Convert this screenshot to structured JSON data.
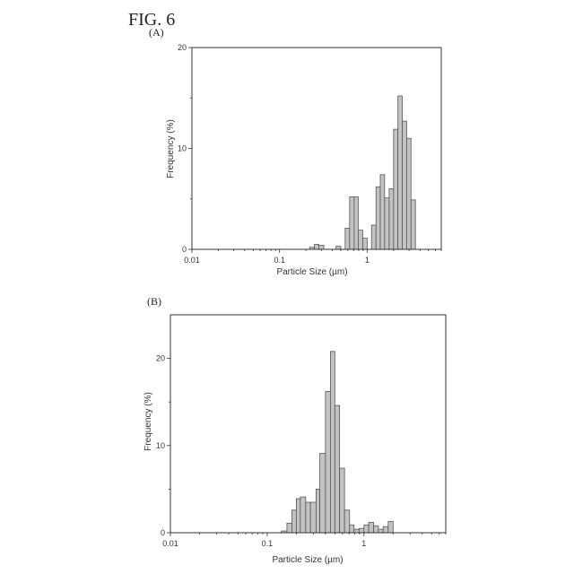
{
  "figure": {
    "title": "FIG.  6"
  },
  "chart_data": [
    {
      "type": "bar",
      "panel_label": "(A)",
      "xlabel": "Particle Size (µm)",
      "ylabel": "Frequency (%)",
      "xscale": "log",
      "xlim": [
        0.01,
        7
      ],
      "ylim": [
        0,
        20
      ],
      "x_ticks": [
        0.01,
        0.1,
        1
      ],
      "x_tick_labels": [
        "0.01",
        "0.1",
        "1"
      ],
      "y_ticks": [
        0,
        10,
        20
      ],
      "y_tick_labels": [
        "0",
        "10",
        "20"
      ],
      "grid": false,
      "bins": [
        {
          "x0": 0.22,
          "x1": 0.25,
          "value": 0.2
        },
        {
          "x0": 0.25,
          "x1": 0.28,
          "value": 0.5
        },
        {
          "x0": 0.28,
          "x1": 0.32,
          "value": 0.4
        },
        {
          "x0": 0.44,
          "x1": 0.5,
          "value": 0.3
        },
        {
          "x0": 0.56,
          "x1": 0.63,
          "value": 2.1
        },
        {
          "x0": 0.63,
          "x1": 0.71,
          "value": 5.2
        },
        {
          "x0": 0.71,
          "x1": 0.79,
          "value": 5.2
        },
        {
          "x0": 0.79,
          "x1": 0.89,
          "value": 1.9
        },
        {
          "x0": 0.89,
          "x1": 1.0,
          "value": 1.1
        },
        {
          "x0": 1.12,
          "x1": 1.26,
          "value": 2.4
        },
        {
          "x0": 1.26,
          "x1": 1.41,
          "value": 6.2
        },
        {
          "x0": 1.41,
          "x1": 1.58,
          "value": 7.4
        },
        {
          "x0": 1.58,
          "x1": 1.78,
          "value": 5.1
        },
        {
          "x0": 1.78,
          "x1": 2.0,
          "value": 6.0
        },
        {
          "x0": 2.0,
          "x1": 2.24,
          "value": 11.9
        },
        {
          "x0": 2.24,
          "x1": 2.51,
          "value": 15.2
        },
        {
          "x0": 2.51,
          "x1": 2.82,
          "value": 12.7
        },
        {
          "x0": 2.82,
          "x1": 3.16,
          "value": 11.0
        },
        {
          "x0": 3.16,
          "x1": 3.55,
          "value": 4.9
        }
      ]
    },
    {
      "type": "bar",
      "panel_label": "(B)",
      "xlabel": "Particle Size (µm)",
      "ylabel": "Frequency (%)",
      "xscale": "log",
      "xlim": [
        0.01,
        7
      ],
      "ylim": [
        0,
        25
      ],
      "x_ticks": [
        0.01,
        0.1,
        1
      ],
      "x_tick_labels": [
        "0.01",
        "0.1",
        "1"
      ],
      "y_ticks": [
        0,
        10,
        20
      ],
      "y_tick_labels": [
        "0",
        "10",
        "20"
      ],
      "grid": false,
      "bins": [
        {
          "x0": 0.14,
          "x1": 0.16,
          "value": 0.2
        },
        {
          "x0": 0.16,
          "x1": 0.18,
          "value": 1.1
        },
        {
          "x0": 0.18,
          "x1": 0.2,
          "value": 2.6
        },
        {
          "x0": 0.2,
          "x1": 0.22,
          "value": 3.9
        },
        {
          "x0": 0.22,
          "x1": 0.25,
          "value": 4.1
        },
        {
          "x0": 0.25,
          "x1": 0.28,
          "value": 3.5
        },
        {
          "x0": 0.28,
          "x1": 0.32,
          "value": 3.5
        },
        {
          "x0": 0.32,
          "x1": 0.35,
          "value": 5.0
        },
        {
          "x0": 0.35,
          "x1": 0.4,
          "value": 9.1
        },
        {
          "x0": 0.4,
          "x1": 0.45,
          "value": 16.2
        },
        {
          "x0": 0.45,
          "x1": 0.5,
          "value": 20.8
        },
        {
          "x0": 0.5,
          "x1": 0.56,
          "value": 14.6
        },
        {
          "x0": 0.56,
          "x1": 0.63,
          "value": 7.4
        },
        {
          "x0": 0.63,
          "x1": 0.71,
          "value": 2.6
        },
        {
          "x0": 0.71,
          "x1": 0.79,
          "value": 0.9
        },
        {
          "x0": 0.79,
          "x1": 0.89,
          "value": 0.4
        },
        {
          "x0": 0.89,
          "x1": 1.0,
          "value": 0.5
        },
        {
          "x0": 1.0,
          "x1": 1.12,
          "value": 0.9
        },
        {
          "x0": 1.12,
          "x1": 1.26,
          "value": 1.2
        },
        {
          "x0": 1.26,
          "x1": 1.41,
          "value": 0.8
        },
        {
          "x0": 1.41,
          "x1": 1.58,
          "value": 0.4
        },
        {
          "x0": 1.58,
          "x1": 1.78,
          "value": 0.7
        },
        {
          "x0": 1.78,
          "x1": 2.0,
          "value": 1.3
        }
      ]
    }
  ]
}
